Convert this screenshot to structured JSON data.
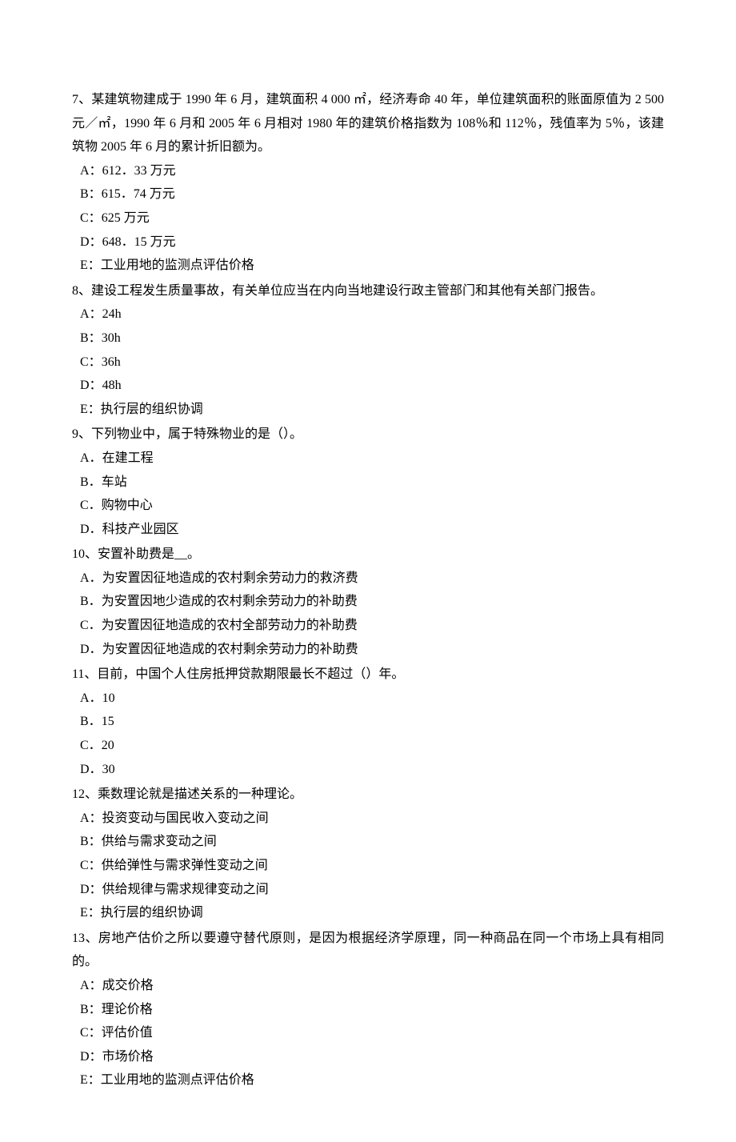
{
  "questions": [
    {
      "number": "7、",
      "text": "某建筑物建成于 1990 年 6 月，建筑面积 4 000 ㎡，经济寿命 40 年，单位建筑面积的账面原值为 2 500 元／㎡，1990 年 6 月和 2005 年 6 月相对 1980 年的建筑价格指数为 108％和 112％，残值率为 5％，该建筑物 2005 年 6 月的累计折旧额为。",
      "options": [
        {
          "label": "A：",
          "text": "612．33 万元"
        },
        {
          "label": "B：",
          "text": "615．74 万元"
        },
        {
          "label": "C：",
          "text": "625 万元"
        },
        {
          "label": "D：",
          "text": "648．15 万元"
        },
        {
          "label": "E：",
          "text": "工业用地的监测点评估价格"
        }
      ]
    },
    {
      "number": "8、",
      "text": "建设工程发生质量事故，有关单位应当在内向当地建设行政主管部门和其他有关部门报告。",
      "options": [
        {
          "label": "A：",
          "text": "24h"
        },
        {
          "label": "B：",
          "text": "30h"
        },
        {
          "label": "C：",
          "text": "36h"
        },
        {
          "label": "D：",
          "text": "48h"
        },
        {
          "label": "E：",
          "text": "执行层的组织协调"
        }
      ]
    },
    {
      "number": "9、",
      "text": "下列物业中，属于特殊物业的是（）。",
      "options": [
        {
          "label": "A．",
          "text": "在建工程"
        },
        {
          "label": "B．",
          "text": "车站"
        },
        {
          "label": "C．",
          "text": "购物中心"
        },
        {
          "label": "D．",
          "text": "科技产业园区"
        }
      ]
    },
    {
      "number": "10、",
      "text": "安置补助费是__。",
      "options": [
        {
          "label": "A．",
          "text": "为安置因征地造成的农村剩余劳动力的救济费"
        },
        {
          "label": "B．",
          "text": "为安置因地少造成的农村剩余劳动力的补助费"
        },
        {
          "label": "C．",
          "text": "为安置因征地造成的农村全部劳动力的补助费"
        },
        {
          "label": "D．",
          "text": "为安置因征地造成的农村剩余劳动力的补助费"
        }
      ]
    },
    {
      "number": "11、",
      "text": "目前，中国个人住房抵押贷款期限最长不超过（）年。",
      "options": [
        {
          "label": "A．",
          "text": "10"
        },
        {
          "label": "B．",
          "text": "15"
        },
        {
          "label": "C．",
          "text": "20"
        },
        {
          "label": "D．",
          "text": "30"
        }
      ]
    },
    {
      "number": "12、",
      "text": "乘数理论就是描述关系的一种理论。",
      "options": [
        {
          "label": "A：",
          "text": "投资变动与国民收入变动之间"
        },
        {
          "label": "B：",
          "text": "供给与需求变动之间"
        },
        {
          "label": "C：",
          "text": "供给弹性与需求弹性变动之间"
        },
        {
          "label": "D：",
          "text": "供给规律与需求规律变动之间"
        },
        {
          "label": "E：",
          "text": "执行层的组织协调"
        }
      ]
    },
    {
      "number": "13、",
      "text": "房地产估价之所以要遵守替代原则，是因为根据经济学原理，同一种商品在同一个市场上具有相同的。",
      "options": [
        {
          "label": "A：",
          "text": "成交价格"
        },
        {
          "label": "B：",
          "text": "理论价格"
        },
        {
          "label": "C：",
          "text": "评估价值"
        },
        {
          "label": "D：",
          "text": "市场价格"
        },
        {
          "label": "E：",
          "text": "工业用地的监测点评估价格"
        }
      ]
    }
  ]
}
